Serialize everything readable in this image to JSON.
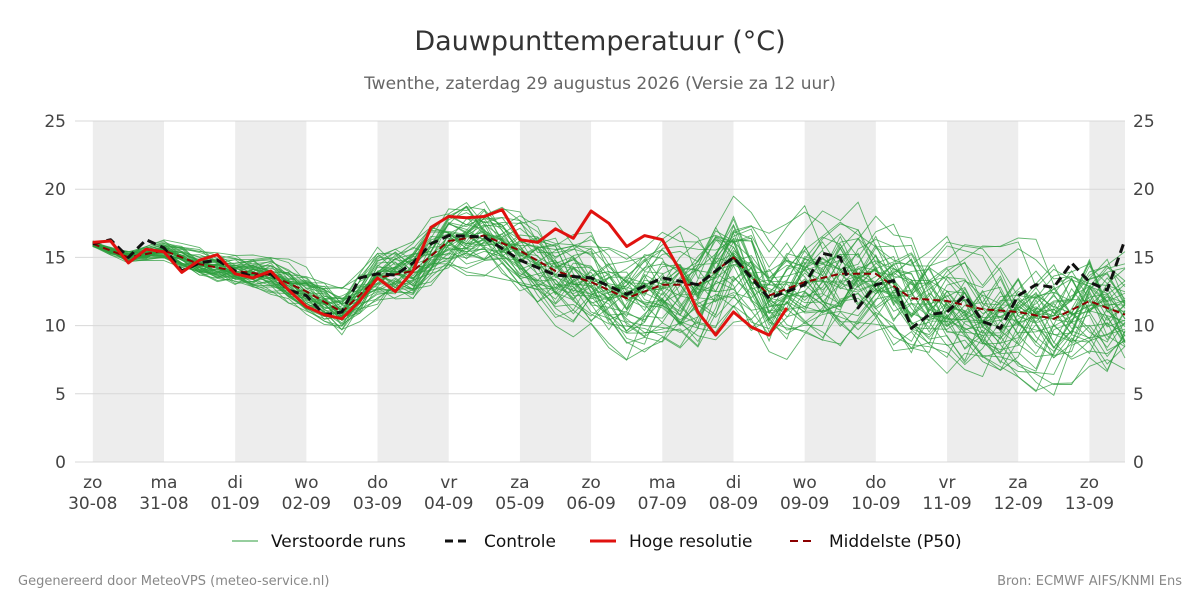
{
  "chart_data": {
    "type": "line",
    "title": "Dauwpunttemperatuur (°C)",
    "subtitle": "Twenthe, zaterdag 29 augustus 2026 (Versie za 12 uur)",
    "ylim": [
      0,
      25
    ],
    "yticks": [
      0,
      5,
      10,
      15,
      20,
      25
    ],
    "grid": true,
    "legend_position": "bottom",
    "x_start": "2026-08-29 18:00",
    "x_end": "2026-09-13 12:00",
    "days": [
      {
        "weekday": "zo",
        "date": "30-08",
        "weekend": true
      },
      {
        "weekday": "ma",
        "date": "31-08",
        "weekend": false
      },
      {
        "weekday": "di",
        "date": "01-09",
        "weekend": true
      },
      {
        "weekday": "wo",
        "date": "02-09",
        "weekend": false
      },
      {
        "weekday": "do",
        "date": "03-09",
        "weekend": true
      },
      {
        "weekday": "vr",
        "date": "04-09",
        "weekend": false
      },
      {
        "weekday": "za",
        "date": "05-09",
        "weekend": true
      },
      {
        "weekday": "zo",
        "date": "06-09",
        "weekend": false
      },
      {
        "weekday": "ma",
        "date": "07-09",
        "weekend": true
      },
      {
        "weekday": "di",
        "date": "08-09",
        "weekend": false
      },
      {
        "weekday": "wo",
        "date": "09-09",
        "weekend": true
      },
      {
        "weekday": "do",
        "date": "10-09",
        "weekend": false
      },
      {
        "weekday": "vr",
        "date": "11-09",
        "weekend": true
      },
      {
        "weekday": "za",
        "date": "12-09",
        "weekend": false
      },
      {
        "weekday": "zo",
        "date": "13-09",
        "weekend": true
      }
    ],
    "series": [
      {
        "name": "Controle",
        "color": "#111111",
        "style": "dashed",
        "x": [
          "2026-08-30 00:00",
          "2026-08-30 06:00",
          "2026-08-30 12:00",
          "2026-08-30 18:00",
          "2026-08-31 00:00",
          "2026-08-31 06:00",
          "2026-08-31 12:00",
          "2026-08-31 18:00",
          "2026-09-01 00:00",
          "2026-09-01 06:00",
          "2026-09-01 12:00",
          "2026-09-01 18:00",
          "2026-09-02 00:00",
          "2026-09-02 06:00",
          "2026-09-02 12:00",
          "2026-09-02 18:00",
          "2026-09-03 00:00",
          "2026-09-03 06:00",
          "2026-09-03 12:00",
          "2026-09-03 18:00",
          "2026-09-04 00:00",
          "2026-09-04 12:00",
          "2026-09-05 00:00",
          "2026-09-05 12:00",
          "2026-09-06 00:00",
          "2026-09-06 12:00",
          "2026-09-07 00:00",
          "2026-09-07 12:00",
          "2026-09-08 00:00",
          "2026-09-08 12:00",
          "2026-09-09 00:00",
          "2026-09-09 06:00",
          "2026-09-09 12:00",
          "2026-09-09 18:00",
          "2026-09-10 00:00",
          "2026-09-10 06:00",
          "2026-09-10 12:00",
          "2026-09-10 18:00",
          "2026-09-11 00:00",
          "2026-09-11 06:00",
          "2026-09-11 12:00",
          "2026-09-11 18:00",
          "2026-09-12 00:00",
          "2026-09-12 06:00",
          "2026-09-12 12:00",
          "2026-09-12 18:00",
          "2026-09-13 00:00",
          "2026-09-13 06:00",
          "2026-09-13 12:00"
        ],
        "values": [
          16.0,
          16.3,
          15.0,
          16.3,
          15.7,
          14.0,
          14.6,
          14.8,
          14.0,
          13.6,
          13.8,
          12.6,
          12.2,
          10.8,
          11.0,
          13.5,
          13.8,
          13.7,
          14.6,
          16.0,
          16.6,
          16.5,
          14.8,
          13.7,
          13.5,
          12.3,
          13.5,
          13.0,
          15.0,
          12.0,
          13.0,
          15.3,
          15.0,
          11.3,
          13.0,
          13.3,
          9.8,
          10.8,
          11.0,
          12.2,
          10.3,
          9.8,
          12.2,
          13.0,
          12.8,
          14.6,
          13.2,
          12.6,
          16.3
        ]
      },
      {
        "name": "Hoge resolutie",
        "color": "#e0120f",
        "style": "solid",
        "x": [
          "2026-08-30 00:00",
          "2026-08-30 06:00",
          "2026-08-30 12:00",
          "2026-08-30 18:00",
          "2026-08-31 00:00",
          "2026-08-31 06:00",
          "2026-08-31 12:00",
          "2026-08-31 18:00",
          "2026-09-01 00:00",
          "2026-09-01 06:00",
          "2026-09-01 12:00",
          "2026-09-01 18:00",
          "2026-09-02 00:00",
          "2026-09-02 06:00",
          "2026-09-02 12:00",
          "2026-09-02 18:00",
          "2026-09-03 00:00",
          "2026-09-03 06:00",
          "2026-09-03 12:00",
          "2026-09-03 18:00",
          "2026-09-04 00:00",
          "2026-09-04 06:00",
          "2026-09-04 12:00",
          "2026-09-04 18:00",
          "2026-09-05 00:00",
          "2026-09-05 06:00",
          "2026-09-05 12:00",
          "2026-09-05 18:00",
          "2026-09-06 00:00",
          "2026-09-06 06:00",
          "2026-09-06 12:00",
          "2026-09-06 18:00",
          "2026-09-07 00:00",
          "2026-09-07 06:00",
          "2026-09-07 12:00",
          "2026-09-07 18:00",
          "2026-09-08 00:00",
          "2026-09-08 06:00",
          "2026-09-08 12:00",
          "2026-09-08 18:00"
        ],
        "values": [
          16.1,
          16.2,
          14.6,
          15.6,
          15.4,
          13.9,
          14.8,
          15.2,
          13.8,
          13.5,
          14.0,
          12.6,
          11.4,
          10.8,
          10.5,
          11.8,
          13.5,
          12.5,
          14.0,
          17.2,
          18.0,
          17.9,
          18.0,
          18.5,
          16.3,
          16.1,
          17.1,
          16.4,
          18.4,
          17.5,
          15.8,
          16.6,
          16.3,
          14.0,
          11.0,
          9.3,
          11.0,
          9.9,
          9.3,
          11.3
        ]
      },
      {
        "name": "Middelste (P50)",
        "color": "#8b0000",
        "style": "dashed",
        "x": [
          "2026-08-30 00:00",
          "2026-08-30 12:00",
          "2026-08-31 00:00",
          "2026-08-31 12:00",
          "2026-09-01 00:00",
          "2026-09-01 12:00",
          "2026-09-02 00:00",
          "2026-09-02 12:00",
          "2026-09-03 00:00",
          "2026-09-03 12:00",
          "2026-09-04 00:00",
          "2026-09-04 12:00",
          "2026-09-05 00:00",
          "2026-09-05 12:00",
          "2026-09-06 00:00",
          "2026-09-06 12:00",
          "2026-09-07 00:00",
          "2026-09-07 12:00",
          "2026-09-08 00:00",
          "2026-09-08 12:00",
          "2026-09-09 00:00",
          "2026-09-09 12:00",
          "2026-09-10 00:00",
          "2026-09-10 12:00",
          "2026-09-11 00:00",
          "2026-09-11 12:00",
          "2026-09-12 00:00",
          "2026-09-12 12:00",
          "2026-09-13 00:00",
          "2026-09-13 12:00"
        ],
        "values": [
          16.0,
          15.0,
          15.5,
          14.5,
          14.0,
          13.7,
          12.5,
          11.0,
          13.5,
          14.0,
          16.2,
          16.6,
          15.5,
          14.0,
          13.2,
          12.0,
          13.0,
          13.0,
          15.0,
          12.2,
          13.2,
          13.8,
          13.8,
          12.0,
          11.8,
          11.2,
          11.0,
          10.5,
          11.8,
          10.8
        ]
      }
    ],
    "ensemble": {
      "name": "Verstoorde runs",
      "color": "#2e9e3e",
      "members": 50
    },
    "legend": [
      {
        "label": "Verstoorde runs",
        "style": "thin",
        "color": "#2e9e3e"
      },
      {
        "label": "Controle",
        "style": "dashed",
        "color": "#111111"
      },
      {
        "label": "Hoge resolutie",
        "style": "solid",
        "color": "#e0120f"
      },
      {
        "label": "Middelste (P50)",
        "style": "dashed",
        "color": "#8b0000"
      }
    ]
  },
  "footer": {
    "left": "Gegenereerd door MeteoVPS (meteo-service.nl)",
    "right": "Bron: ECMWF AIFS/KNMI Ens"
  }
}
